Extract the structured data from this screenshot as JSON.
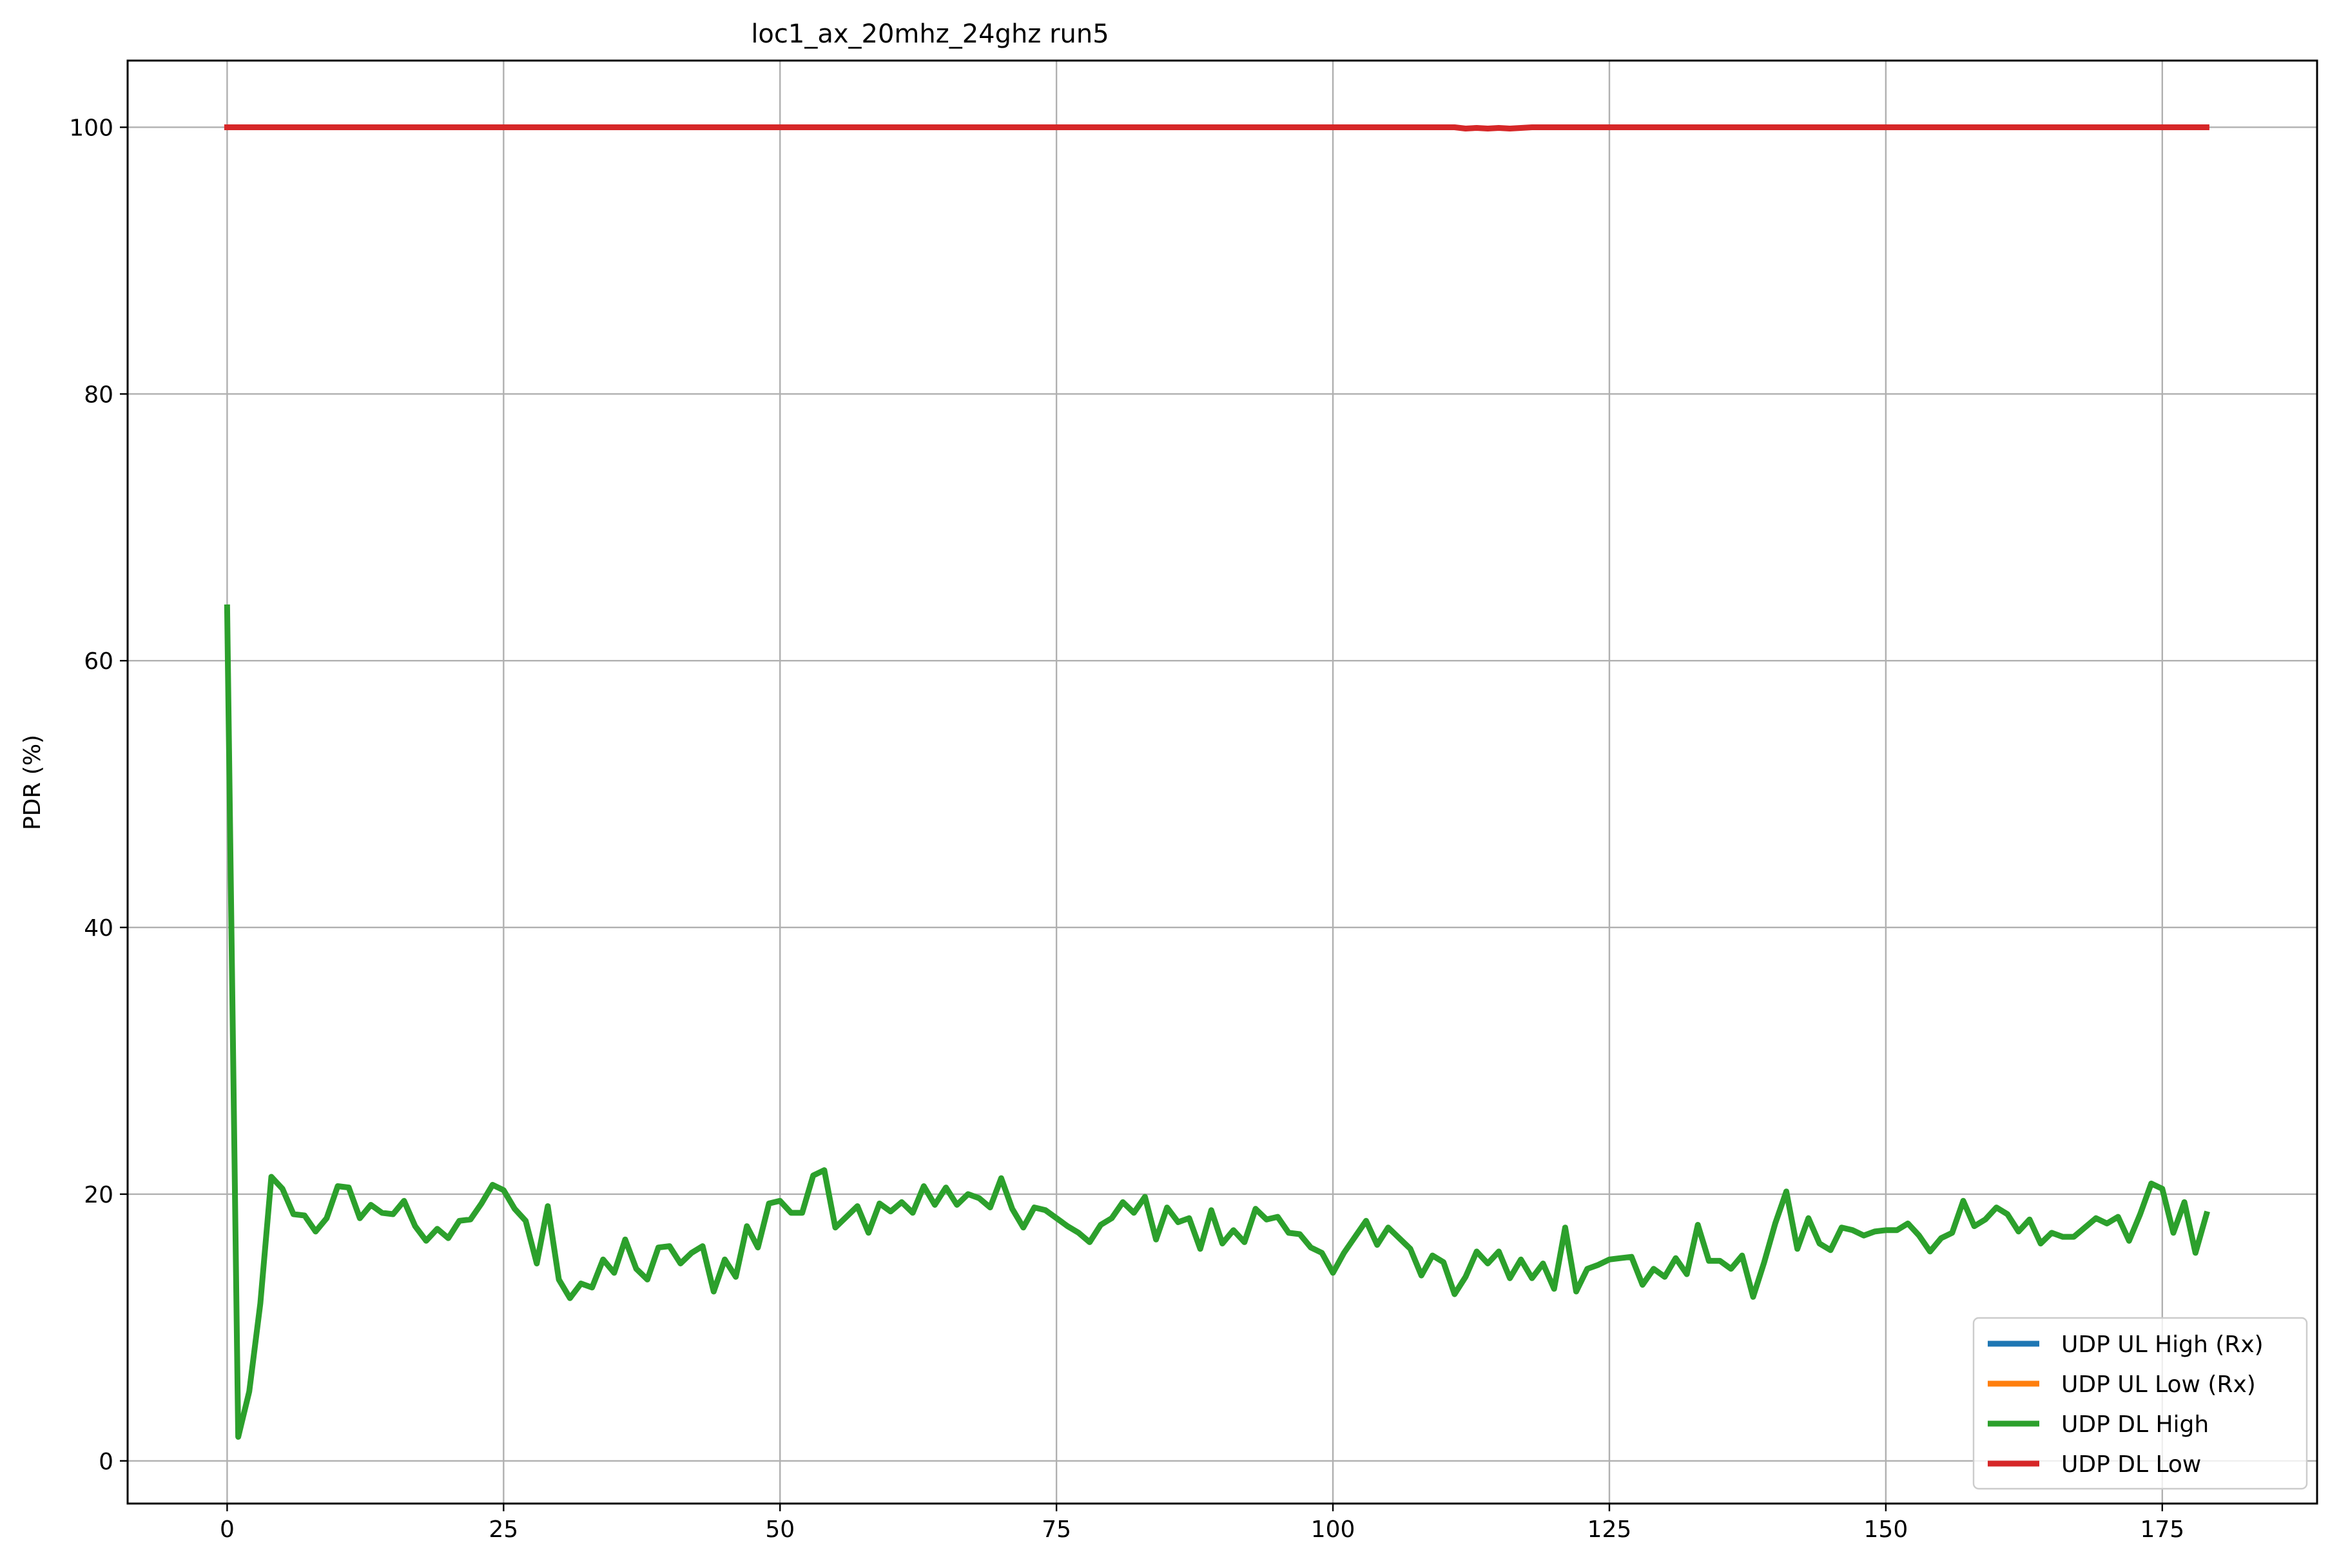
{
  "chart_data": {
    "type": "line",
    "title": "loc1_ax_20mhz_24ghz run5",
    "xlabel": "",
    "ylabel": "PDR (%)",
    "xlim": [
      -9,
      189
    ],
    "ylim": [
      -3.2,
      105
    ],
    "xticks": [
      0,
      25,
      50,
      75,
      100,
      125,
      150,
      175
    ],
    "yticks": [
      0,
      20,
      40,
      60,
      80,
      100
    ],
    "grid": true,
    "legend_position": "lower right",
    "x_start": 0,
    "x_end": 179,
    "series": [
      {
        "name": "UDP UL High (Rx)",
        "color": "#1f77b4",
        "values": []
      },
      {
        "name": "UDP UL Low (Rx)",
        "color": "#ff7f0e",
        "values": []
      },
      {
        "name": "UDP DL High",
        "color": "#2ca02c",
        "values": [
          64,
          1.8,
          5.2,
          11.8,
          21.3,
          20.4,
          18.5,
          18.4,
          17.2,
          18.2,
          20.6,
          20.5,
          18.2,
          19.2,
          18.6,
          18.5,
          19.5,
          17.6,
          16.5,
          17.4,
          16.7,
          18,
          18.1,
          19.3,
          20.7,
          20.3,
          18.9,
          18,
          14.8,
          19.1,
          13.6,
          12.2,
          13.3,
          13,
          15.1,
          14.1,
          16.6,
          14.4,
          13.6,
          16,
          16.1,
          14.8,
          15.6,
          16.1,
          12.7,
          15.1,
          13.8,
          17.6,
          16,
          19.3,
          19.5,
          18.6,
          18.6,
          21.4,
          21.8,
          17.5,
          18.3,
          19.1,
          17.1,
          19.3,
          18.7,
          19.4,
          18.6,
          20.6,
          19.2,
          20.5,
          19.2,
          20,
          19.7,
          19,
          21.2,
          18.9,
          17.5,
          19,
          18.8,
          18.2,
          17.6,
          17.1,
          16.4,
          17.7,
          18.2,
          19.4,
          18.6,
          19.8,
          16.6,
          19,
          17.9,
          18.2,
          15.9,
          18.8,
          16.3,
          17.3,
          16.4,
          18.9,
          18.1,
          18.3,
          17.1,
          17,
          16,
          15.6,
          14.1,
          15.6,
          16.8,
          18,
          16.2,
          17.5,
          16.7,
          15.9,
          13.9,
          15.4,
          14.9,
          12.5,
          13.8,
          15.7,
          14.8,
          15.7,
          13.7,
          15.1,
          13.7,
          14.8,
          12.9,
          17.5,
          12.7,
          14.4,
          14.7,
          15.1,
          15.2,
          15.3,
          13.2,
          14.4,
          13.8,
          15.2,
          14,
          17.7,
          15,
          15,
          14.4,
          15.4,
          12.3,
          14.9,
          17.8,
          20.2,
          15.9,
          18.2,
          16.3,
          15.8,
          17.5,
          17.3,
          16.9,
          17.2,
          17.3,
          17.3,
          17.8,
          16.9,
          15.7,
          16.7,
          17.1,
          19.5,
          17.6,
          18.1,
          19,
          18.5,
          17.2,
          18.1,
          16.3,
          17.1,
          16.8,
          16.8,
          17.5,
          18.2,
          17.8,
          18.3,
          16.5,
          18.5,
          20.8,
          20.4,
          17.1,
          19.4,
          15.6,
          18.5
        ]
      },
      {
        "name": "UDP DL Low",
        "color": "#d62728",
        "values": "constant-100",
        "min": 99.9
      }
    ]
  }
}
